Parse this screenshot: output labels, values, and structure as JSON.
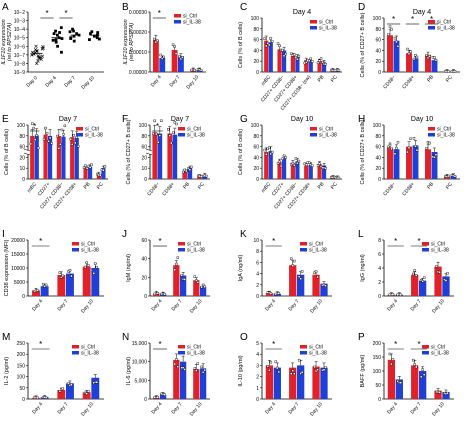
{
  "colors": {
    "ctrl": "#e0212a",
    "il38": "#1f3fd6",
    "axis": "#000000"
  },
  "chart_data": [
    {
      "id": "A",
      "type": "scatter",
      "categories": [
        "Day 0",
        "Day 4",
        "Day 7",
        "Day 10"
      ],
      "ylabel": "IL1F10 expression\n(rel to RPS27A)",
      "ylim": [
        1e-09,
        0.01
      ],
      "log_scale": true,
      "yticks": [
        "10−2",
        "10−3",
        "10−4",
        "10−5",
        "10−6",
        "10−7",
        "10−8",
        "10−9"
      ],
      "series": [
        {
          "values": [
            [
              1e-07,
              5e-07,
              2e-07,
              8e-08,
              1e-06,
              3e-07,
              6e-08,
              1.5e-07,
              4e-07,
              2e-08,
              9e-07,
              3e-08,
              1.2e-07,
              6e-07,
              5e-08,
              2.5e-07,
              7e-08,
              1e-08,
              4e-08,
              1.8e-07
            ],
            [
              1e-05,
              3e-05,
              6e-05,
              5e-06,
              2e-05,
              8e-06,
              0.00015,
              3e-06,
              4e-05,
              1e-06,
              2e-07,
              6e-06
            ],
            [
              2e-05,
              5e-05,
              1e-05,
              8e-06,
              3e-05,
              0.0001,
              4e-06,
              6e-05,
              1.5e-05
            ],
            [
              1e-05,
              4e-05,
              2e-05,
              7e-06,
              3e-05,
              6e-06,
              1.5e-05,
              5e-05
            ]
          ]
        }
      ],
      "annotations": [
        "*",
        "*"
      ]
    },
    {
      "id": "B",
      "type": "bar",
      "categories": [
        "Day 4",
        "Day 7",
        "Day 10"
      ],
      "ylabel": "IL1F10 expression\n(rel to RPS27A)",
      "ylim": [
        0,
        0.0003
      ],
      "yticks": [
        "0.00000",
        "0.00010",
        "0.00020",
        "0.00030"
      ],
      "legend": [
        "si_Ctrl",
        "si_IL-38"
      ],
      "series": [
        {
          "name": "si_Ctrl",
          "values": [
            0.00016,
            0.00011,
            1e-05
          ]
        },
        {
          "name": "si_IL-38",
          "values": [
            7e-05,
            8e-05,
            1e-05
          ]
        }
      ],
      "annotations": [
        "*"
      ]
    },
    {
      "id": "C",
      "type": "bar",
      "title": "Day 4",
      "categories": [
        "rnBC",
        "CD27+ CD38−",
        "CD27+ CD38+",
        "CD27+ CD38− (sw)",
        "PB",
        "PC"
      ],
      "ylabel": "Cells (% of B cells)",
      "ylim": [
        0,
        100
      ],
      "yticks": [
        "0",
        "20",
        "40",
        "60",
        "80",
        "100"
      ],
      "legend": [
        "si_Ctrl",
        "si_IL-38"
      ],
      "series": [
        {
          "name": "si_Ctrl",
          "values": [
            58,
            42,
            30,
            22,
            20,
            3
          ]
        },
        {
          "name": "si_IL-38",
          "values": [
            55,
            40,
            28,
            20,
            18,
            3
          ]
        }
      ]
    },
    {
      "id": "D",
      "type": "bar",
      "title": "Day 4",
      "categories": [
        "CD38−",
        "CD38+",
        "PB",
        "PC"
      ],
      "ylabel": "Cells (% of CD27+ B cells)",
      "ylim": [
        0,
        100
      ],
      "yticks": [
        "0",
        "20",
        "40",
        "60",
        "80",
        "100"
      ],
      "legend": [
        "si_Ctrl",
        "si_IL-38"
      ],
      "series": [
        {
          "name": "si_Ctrl",
          "values": [
            68,
            35,
            32,
            1
          ]
        },
        {
          "name": "si_IL-38",
          "values": [
            58,
            25,
            22,
            1
          ]
        }
      ],
      "annotations": [
        "*",
        "*",
        "*"
      ]
    },
    {
      "id": "E",
      "type": "bar",
      "title": "Day 7",
      "categories": [
        "rnBC",
        "CD27+",
        "CD27+ CD38−",
        "CD27+ CD38+",
        "PB",
        "PC"
      ],
      "ylabel": "Cells (% of B cells)",
      "ylim": [
        0,
        100
      ],
      "broken_axis": true,
      "yticks": [
        "0",
        "10",
        "20",
        "60",
        "80",
        "100"
      ],
      "legend": [
        "si_Ctrl",
        "si_IL-38"
      ],
      "series": [
        {
          "name": "si_Ctrl",
          "values": [
            82,
            84,
            82,
            80,
            9,
            4
          ]
        },
        {
          "name": "si_IL-38",
          "values": [
            83,
            82,
            81,
            79,
            10,
            9
          ]
        }
      ],
      "annotations": [
        "*"
      ]
    },
    {
      "id": "F",
      "type": "bar",
      "title": "Day 7",
      "categories": [
        "CD38−",
        "CD38+",
        "PB",
        "PC"
      ],
      "ylabel": "Cells (% of CD27+ B cells)",
      "ylim": [
        0,
        100
      ],
      "broken_axis": true,
      "yticks": [
        "0",
        "10",
        "20",
        "60",
        "80",
        "100"
      ],
      "legend": [
        "si_Ctrl",
        "si_IL-38"
      ],
      "series": [
        {
          "name": "si_Ctrl",
          "values": [
            88,
            86,
            6,
            2
          ]
        },
        {
          "name": "si_IL-38",
          "values": [
            86,
            84,
            9,
            3
          ]
        }
      ],
      "annotations": [
        "*"
      ]
    },
    {
      "id": "G",
      "type": "bar",
      "title": "Day 10",
      "categories": [
        "rnBC",
        "CD27+",
        "CD27+ CD38−",
        "CD27+ CD38+",
        "PB",
        "PC"
      ],
      "ylabel": "Cells (% of B cells)",
      "ylim": [
        0,
        100
      ],
      "yticks": [
        "0",
        "20",
        "40",
        "60",
        "80",
        "100"
      ],
      "legend": [
        "si_Ctrl",
        "si_IL-38"
      ],
      "series": [
        {
          "name": "si_Ctrl",
          "values": [
            50,
            32,
            30,
            25,
            28,
            3
          ]
        },
        {
          "name": "si_IL-38",
          "values": [
            52,
            38,
            33,
            26,
            25,
            2
          ]
        }
      ]
    },
    {
      "id": "H",
      "type": "bar",
      "title": "Day 10",
      "categories": [
        "CD38−",
        "CD38+",
        "PB",
        "PC"
      ],
      "ylabel": "Cells (% of CD27+ B cells)",
      "ylim": [
        0,
        100
      ],
      "yticks": [
        "0",
        "20",
        "40",
        "60",
        "80",
        "100"
      ],
      "legend": [
        "si_Ctrl",
        "si_IL-38"
      ],
      "series": [
        {
          "name": "si_Ctrl",
          "values": [
            58,
            60,
            55,
            5
          ]
        },
        {
          "name": "si_IL-38",
          "values": [
            55,
            62,
            50,
            6
          ]
        }
      ]
    },
    {
      "id": "I",
      "type": "bar",
      "categories": [
        "Day 4",
        "Day 7",
        "Day 10"
      ],
      "ylabel": "CD38 expression (MFI)",
      "ylim": [
        0,
        20000
      ],
      "yticks": [
        "0",
        "5000",
        "10000",
        "15000",
        "20000"
      ],
      "legend": [
        "si_Ctrl",
        "si_IL-38"
      ],
      "series": [
        {
          "name": "si_Ctrl",
          "values": [
            2000,
            7500,
            10500
          ]
        },
        {
          "name": "si_IL-38",
          "values": [
            3500,
            8000,
            10000
          ]
        }
      ],
      "annotations": [
        "*"
      ]
    },
    {
      "id": "J",
      "type": "bar",
      "categories": [
        "Day 4",
        "Day 7",
        "Day 10"
      ],
      "ylabel": "IgM (ng/ml)",
      "ylim": [
        0,
        60
      ],
      "yticks": [
        "0",
        "20",
        "40",
        "60"
      ],
      "legend": [
        "si_Ctrl",
        "si_IL-38"
      ],
      "series": [
        {
          "name": "si_Ctrl",
          "values": [
            3,
            33,
            17
          ]
        },
        {
          "name": "si_IL-38",
          "values": [
            2,
            22,
            10
          ]
        }
      ],
      "annotations": [
        "*"
      ]
    },
    {
      "id": "K",
      "type": "bar",
      "categories": [
        "Day 4",
        "Day 7",
        "Day 10"
      ],
      "ylabel": "IgA (ng/ml)",
      "ylim": [
        0,
        10
      ],
      "yticks": [
        "0",
        "2",
        "4",
        "6",
        "8",
        "10"
      ],
      "legend": [
        "si_Ctrl",
        "si_IL-38"
      ],
      "series": [
        {
          "name": "si_Ctrl",
          "values": [
            0.5,
            5.5,
            3.8
          ]
        },
        {
          "name": "si_IL-38",
          "values": [
            0.4,
            3.8,
            2.2
          ]
        }
      ],
      "annotations": [
        "*"
      ]
    },
    {
      "id": "L",
      "type": "bar",
      "categories": [
        "Day 4",
        "Day 7",
        "Day 10"
      ],
      "ylabel": "IgG (ng/ml)",
      "ylim": [
        0,
        8
      ],
      "yticks": [
        "0",
        "2",
        "4",
        "6",
        "8"
      ],
      "legend": [
        "si_Ctrl",
        "si_IL-38"
      ],
      "series": [
        {
          "name": "si_Ctrl",
          "values": [
            0.2,
            3.0,
            4.2
          ]
        },
        {
          "name": "si_IL-38",
          "values": [
            0.2,
            2.2,
            2.8
          ]
        }
      ],
      "annotations": [
        "*",
        "*"
      ]
    },
    {
      "id": "M",
      "type": "bar",
      "categories": [
        "Day 4",
        "Day 7",
        "Day 10"
      ],
      "ylabel": "IL-2 (pg/ml)",
      "ylim": [
        0,
        250
      ],
      "yticks": [
        "0",
        "50",
        "100",
        "150",
        "200",
        "250"
      ],
      "legend": [
        "si_Ctrl",
        "si_IL-38"
      ],
      "series": [
        {
          "name": "si_Ctrl",
          "values": [
            5,
            40,
            30
          ]
        },
        {
          "name": "si_IL-38",
          "values": [
            8,
            70,
            95
          ]
        }
      ],
      "annotations": [
        "*"
      ]
    },
    {
      "id": "N",
      "type": "bar",
      "categories": [
        "Day 4",
        "Day 7",
        "Day 10"
      ],
      "ylabel": "IL-6 (pg/ml)",
      "ylim": [
        0,
        15000
      ],
      "yticks": [
        "0",
        "5,000",
        "10,000",
        "15,000"
      ],
      "legend": [
        "si_Ctrl",
        "si_IL-38"
      ],
      "series": [
        {
          "name": "si_Ctrl",
          "values": [
            400,
            10500,
            8000
          ]
        },
        {
          "name": "si_IL-38",
          "values": [
            1200,
            10000,
            8200
          ]
        }
      ],
      "annotations": [
        "*"
      ]
    },
    {
      "id": "O",
      "type": "bar",
      "categories": [
        "Day 4",
        "Day 7",
        "Day 10"
      ],
      "ylabel": "IL-10 (pg/ml)",
      "ylim": [
        0,
        5
      ],
      "yticks": [
        "0",
        "1",
        "2",
        "3",
        "4",
        "5"
      ],
      "legend": [
        "si_Ctrl",
        "si_IL-38"
      ],
      "series": [
        {
          "name": "si_Ctrl",
          "values": [
            3.0,
            2.8,
            2.9
          ]
        },
        {
          "name": "si_IL-38",
          "values": [
            2.8,
            3.0,
            2.8
          ]
        }
      ],
      "annotations": [
        "*"
      ]
    },
    {
      "id": "P",
      "type": "bar",
      "categories": [
        "Day 4",
        "Day 7",
        "Day 10"
      ],
      "ylabel": "BAFF (pg/ml)",
      "ylim": [
        0,
        200
      ],
      "yticks": [
        "0",
        "50",
        "100",
        "150",
        "200"
      ],
      "legend": [
        "si_Ctrl",
        "si_IL-38"
      ],
      "series": [
        {
          "name": "si_Ctrl",
          "values": [
            140,
            120,
            30
          ]
        },
        {
          "name": "si_IL-38",
          "values": [
            70,
            100,
            25
          ]
        }
      ],
      "annotations": [
        "*",
        "*"
      ]
    }
  ]
}
